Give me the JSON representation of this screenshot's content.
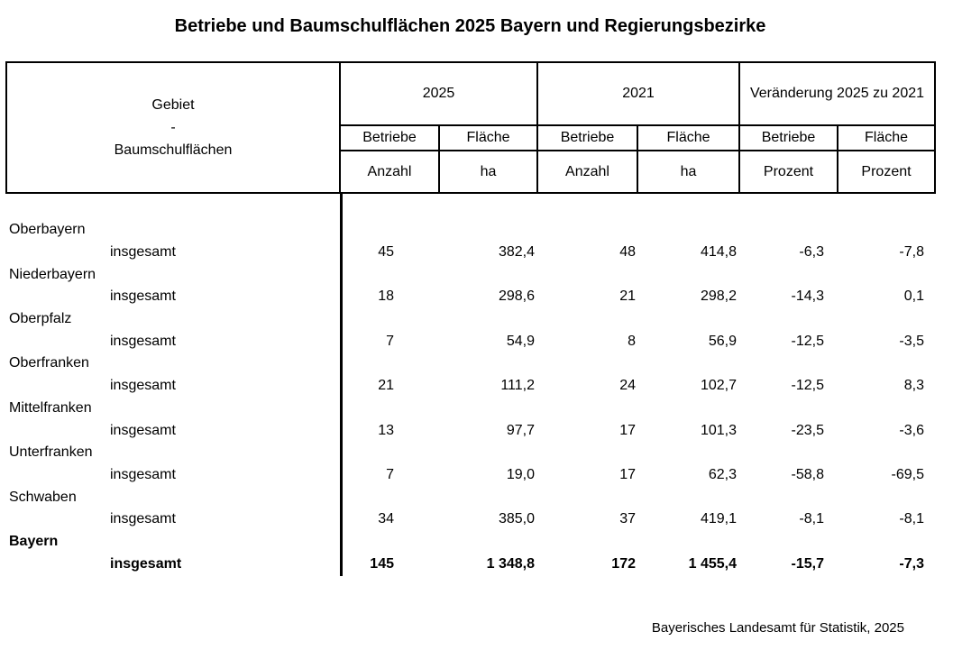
{
  "title": "Betriebe und Baumschulflächen 2025 Bayern und Regierungsbezirke",
  "colors": {
    "text": "#000000",
    "border": "#000000",
    "background": "#ffffff"
  },
  "table": {
    "corner": [
      "Gebiet",
      "-",
      "Baumschulflächen"
    ],
    "groups": [
      "2025",
      "2021",
      "Veränderung 2025 zu 2021"
    ],
    "subheaders": [
      "Betriebe",
      "Fläche",
      "Betriebe",
      "Fläche",
      "Betriebe",
      "Fläche"
    ],
    "units": [
      "Anzahl",
      "ha",
      "Anzahl",
      "ha",
      "Prozent",
      "Prozent"
    ],
    "rows": [
      {
        "region": "Oberbayern",
        "label": "insgesamt",
        "values": [
          "45",
          "382,4",
          "48",
          "414,8",
          "-6,3",
          "-7,8"
        ]
      },
      {
        "region": "Niederbayern",
        "label": "insgesamt",
        "values": [
          "18",
          "298,6",
          "21",
          "298,2",
          "-14,3",
          "0,1"
        ]
      },
      {
        "region": "Oberpfalz",
        "label": "insgesamt",
        "values": [
          "7",
          "54,9",
          "8",
          "56,9",
          "-12,5",
          "-3,5"
        ]
      },
      {
        "region": "Oberfranken",
        "label": "insgesamt",
        "values": [
          "21",
          "111,2",
          "24",
          "102,7",
          "-12,5",
          "8,3"
        ]
      },
      {
        "region": "Mittelfranken",
        "label": "insgesamt",
        "values": [
          "13",
          "97,7",
          "17",
          "101,3",
          "-23,5",
          "-3,6"
        ]
      },
      {
        "region": "Unterfranken",
        "label": "insgesamt",
        "values": [
          "7",
          "19,0",
          "17",
          "62,3",
          "-58,8",
          "-69,5"
        ]
      },
      {
        "region": "Schwaben",
        "label": "insgesamt",
        "values": [
          "34",
          "385,0",
          "37",
          "419,1",
          "-8,1",
          "-8,1"
        ]
      },
      {
        "region": "Bayern",
        "label": "insgesamt",
        "values": [
          "145",
          "1 348,8",
          "172",
          "1 455,4",
          "-15,7",
          "-7,3"
        ]
      }
    ]
  },
  "footer": "Bayerisches Landesamt für Statistik, 2025"
}
